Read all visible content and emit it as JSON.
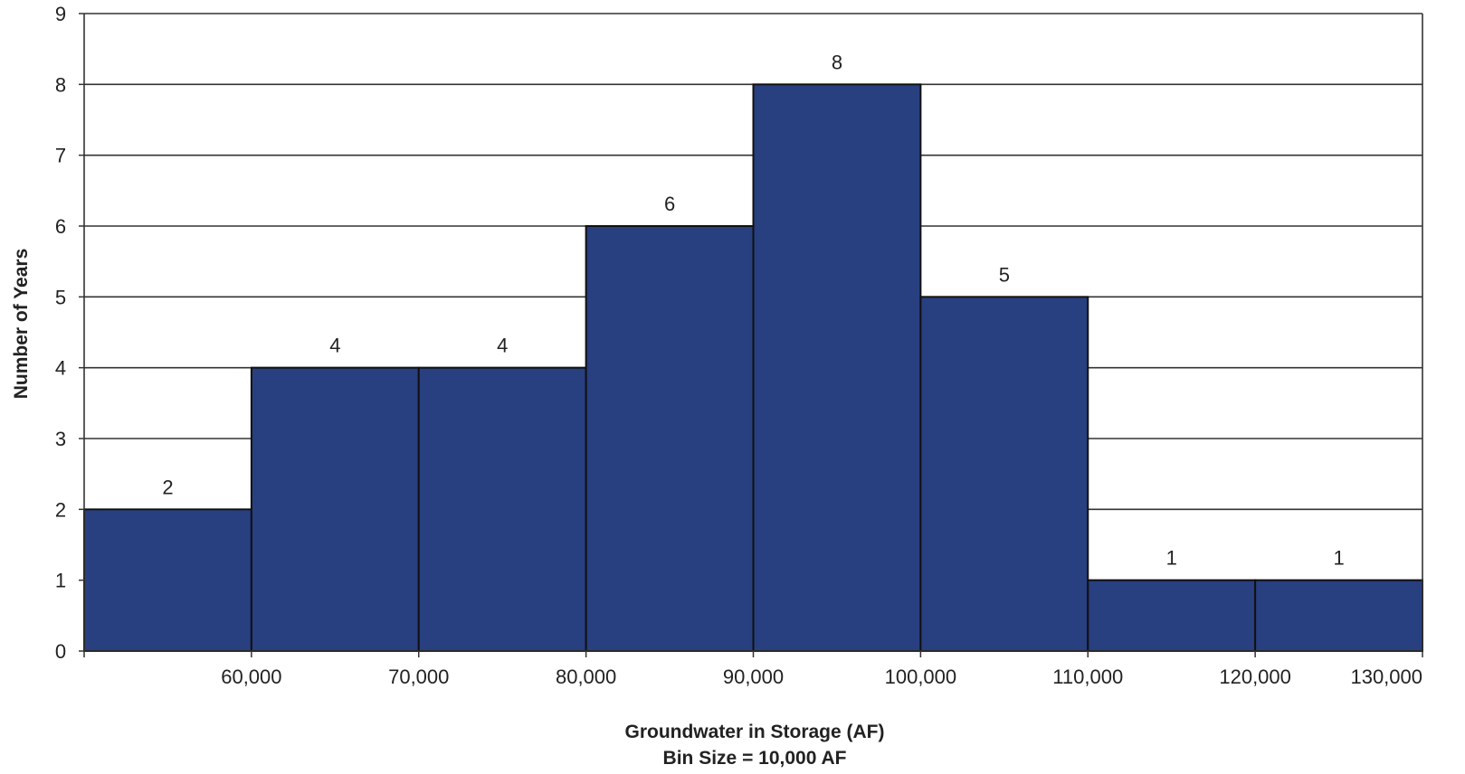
{
  "chart_data": {
    "type": "bar",
    "bin_edges": [
      50000,
      60000,
      70000,
      80000,
      90000,
      100000,
      110000,
      120000,
      130000
    ],
    "values": [
      2,
      4,
      4,
      6,
      8,
      5,
      1,
      1
    ],
    "x_tick_values": [
      60000,
      70000,
      80000,
      90000,
      100000,
      110000,
      120000,
      130000
    ],
    "x_tick_labels": [
      "60,000",
      "70,000",
      "80,000",
      "90,000",
      "100,000",
      "110,000",
      "120,000",
      "130,000"
    ],
    "y_tick_labels": [
      "0",
      "1",
      "2",
      "3",
      "4",
      "5",
      "6",
      "7",
      "8",
      "9"
    ],
    "data_labels": [
      "2",
      "4",
      "4",
      "6",
      "8",
      "5",
      "1",
      "1"
    ],
    "xlabel": "Groundwater in Storage (AF)",
    "xlabel_line2": "Bin Size = 10,000 AF",
    "ylabel": "Number of Years",
    "xlim": [
      50000,
      130000
    ],
    "ylim": [
      0,
      9
    ],
    "grid": true,
    "bar_color": "#283f80",
    "bar_edge_color": "#111111",
    "grid_color": "#333333"
  }
}
